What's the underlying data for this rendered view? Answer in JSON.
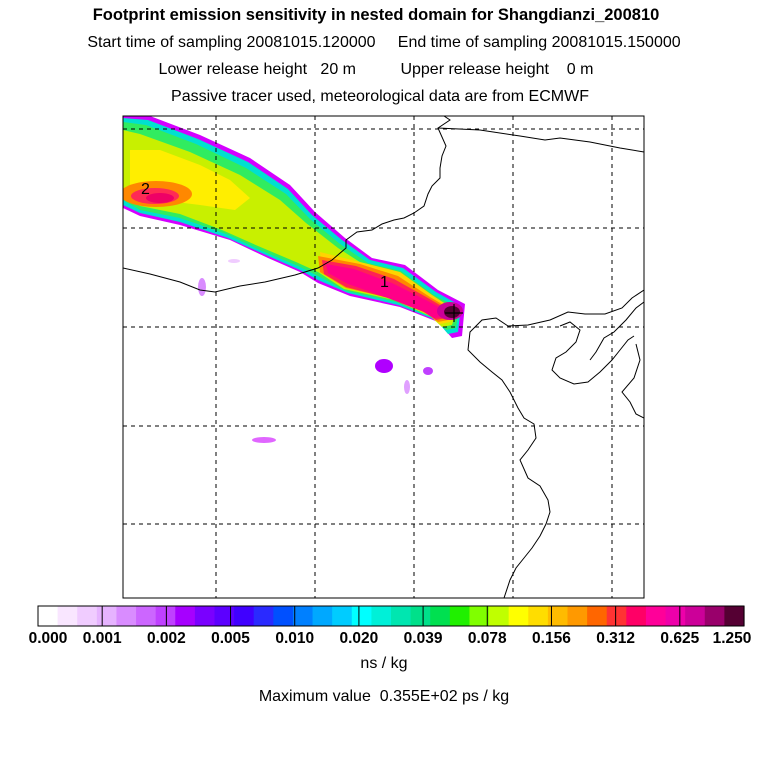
{
  "header": {
    "title": "Footprint emission sensitivity in nested domain for Shangdianzi_200810",
    "sampling_line": "Start time of sampling 20081015.120000     End time of sampling 20081015.150000",
    "height_line": "Lower release height   20 m          Upper release height    0 m",
    "tracer_line": "Passive tracer used, meteorological data are from ECMWF"
  },
  "map": {
    "labels": [
      {
        "text": "2"
      },
      {
        "text": "1"
      }
    ],
    "receptor_marker": "plus-icon"
  },
  "colorbar": {
    "ticks": [
      "0.000",
      "0.001",
      "0.002",
      "0.005",
      "0.010",
      "0.020",
      "0.039",
      "0.078",
      "0.156",
      "0.312",
      "0.625",
      "1.250"
    ],
    "colors": [
      "#ffffff",
      "#f9e6ff",
      "#f0ccff",
      "#e6b3ff",
      "#d98cff",
      "#cc66ff",
      "#bf40ff",
      "#a600ff",
      "#7a00ff",
      "#5c00ff",
      "#4000ff",
      "#2a2aff",
      "#0050ff",
      "#0080ff",
      "#00a8ff",
      "#00ccff",
      "#00ffff",
      "#00f0d8",
      "#00e6b0",
      "#00e08a",
      "#00e050",
      "#20f000",
      "#80ff00",
      "#c0ff00",
      "#ffff00",
      "#ffdd00",
      "#ffbb00",
      "#ff9900",
      "#ff6600",
      "#ff3333",
      "#ff0066",
      "#ff0099",
      "#ee00aa",
      "#cc0099",
      "#99006b",
      "#550033"
    ],
    "unit": "ns / kg"
  },
  "footer": {
    "max_value": "Maximum value  0.355E+02 ps / kg"
  }
}
